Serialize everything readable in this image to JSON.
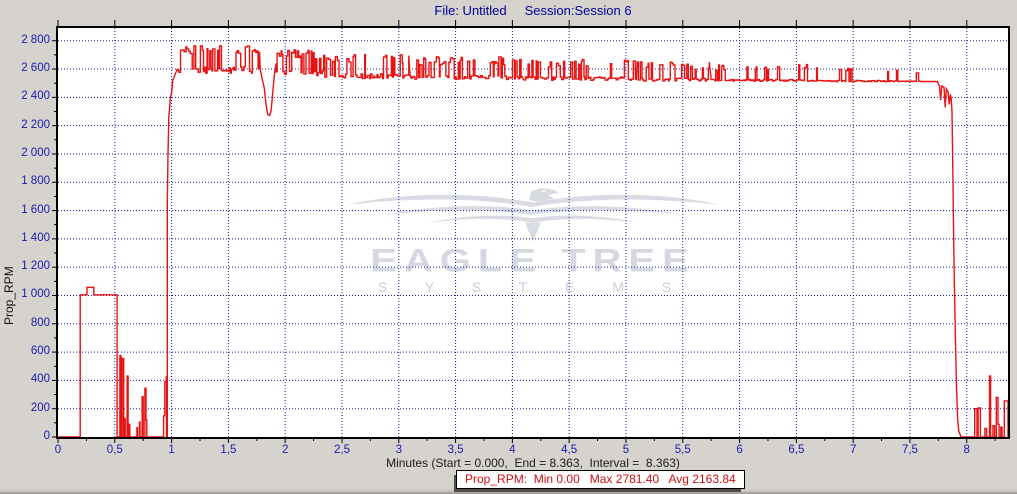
{
  "window": {
    "title_file": "File: Untitled",
    "title_session": "Session:Session 6"
  },
  "y_axis": {
    "title": "Prop_RPM"
  },
  "x_axis": {
    "title": "Minutes (Start = 0.000,  End = 8.363,  Interval =  8.363)"
  },
  "status_bar": {
    "channel": "Prop_RPM:",
    "min_label": "Min",
    "min_value": "0.00",
    "max_label": "Max",
    "max_value": "2781.40",
    "avg_label": "Avg",
    "avg_value": "2163.84"
  },
  "watermark": {
    "line1": "EAGLE TREE",
    "line2": "S Y S T E M S"
  },
  "colors": {
    "background": "#d6d3ce",
    "plot_background": "#ffffff",
    "grid": "#1c1c96",
    "axis_border": "#000000",
    "series_red": "#e81212",
    "tick_label_blue": "#1a1aae",
    "title_blue": "#00009a",
    "status_red": "#cc1111",
    "watermark_gray": "#d6d8e1"
  },
  "chart_data": {
    "type": "line",
    "title": "",
    "series_name": "Prop_RPM",
    "x_label": "Minutes",
    "y_label": "Prop_RPM",
    "x_range": [
      0,
      8.363
    ],
    "y_range": [
      0,
      2890
    ],
    "grid": true,
    "stats": {
      "min": 0.0,
      "max": 2781.4,
      "avg": 2163.84,
      "start": 0.0,
      "end": 8.363,
      "interval": 8.363
    },
    "x_ticks": {
      "values": [
        0,
        0.5,
        1,
        1.5,
        2,
        2.5,
        3,
        3.5,
        4,
        4.5,
        5,
        5.5,
        6,
        6.5,
        7,
        7.5,
        8
      ],
      "labels": [
        "0",
        "0,5",
        "1",
        "1,5",
        "2",
        "2,5",
        "3",
        "3,5",
        "4",
        "4,5",
        "5",
        "5,5",
        "6",
        "6,5",
        "7",
        "7,5",
        "8"
      ],
      "minor_step": 0.25
    },
    "y_ticks": {
      "values": [
        0,
        200,
        400,
        600,
        800,
        1000,
        1200,
        1400,
        1600,
        1800,
        2000,
        2200,
        2400,
        2600,
        2800
      ],
      "labels": [
        "0",
        "200",
        "400",
        "600",
        "800",
        "1 000",
        "1 200",
        "1 400",
        "1 600",
        "1 800",
        "2 000",
        "2 200",
        "2 400",
        "2 600",
        "2 800"
      ],
      "minor_step": 100
    },
    "segments": [
      {
        "pts": [
          [
            0,
            0
          ],
          [
            0.195,
            0
          ],
          [
            0.195,
            1005
          ],
          [
            0.255,
            1005
          ],
          [
            0.255,
            1058
          ],
          [
            0.315,
            1058
          ],
          [
            0.315,
            1005
          ],
          [
            0.52,
            1005
          ],
          [
            0.52,
            0
          ]
        ]
      },
      {
        "pts": [
          [
            0.545,
            0
          ],
          [
            0.545,
            575
          ],
          [
            0.555,
            575
          ],
          [
            0.555,
            0
          ],
          [
            0.565,
            0
          ],
          [
            0.565,
            555
          ],
          [
            0.578,
            555
          ],
          [
            0.578,
            0
          ],
          [
            0.588,
            0
          ],
          [
            0.588,
            130
          ],
          [
            0.592,
            130
          ],
          [
            0.592,
            0
          ],
          [
            0.608,
            0
          ],
          [
            0.608,
            430
          ],
          [
            0.617,
            430
          ],
          [
            0.617,
            0
          ],
          [
            0.628,
            0
          ],
          [
            0.628,
            90
          ],
          [
            0.632,
            90
          ],
          [
            0.632,
            0
          ],
          [
            0.695,
            0
          ],
          [
            0.695,
            65
          ],
          [
            0.7,
            65
          ],
          [
            0.7,
            0
          ],
          [
            0.717,
            0
          ],
          [
            0.717,
            105
          ],
          [
            0.722,
            105
          ],
          [
            0.722,
            0
          ],
          [
            0.74,
            0
          ],
          [
            0.74,
            285
          ],
          [
            0.75,
            285
          ],
          [
            0.75,
            0
          ],
          [
            0.765,
            0
          ],
          [
            0.765,
            345
          ],
          [
            0.775,
            345
          ],
          [
            0.775,
            120
          ],
          [
            0.782,
            120
          ],
          [
            0.782,
            0
          ]
        ]
      },
      {
        "pts": [
          [
            0.93,
            0
          ],
          [
            0.93,
            150
          ],
          [
            0.94,
            150
          ],
          [
            0.94,
            390
          ],
          [
            0.95,
            390
          ],
          [
            0.955,
            430
          ],
          [
            0.955,
            0
          ],
          [
            0.962,
            0
          ],
          [
            0.962,
            1650
          ],
          [
            0.968,
            2000
          ],
          [
            0.975,
            2260
          ],
          [
            0.99,
            2400
          ],
          [
            1.0,
            2430
          ],
          [
            1.01,
            2520
          ],
          [
            1.03,
            2560
          ],
          [
            1.05,
            2600
          ]
        ]
      },
      {
        "band": [
          1.05,
          1.78,
          2615,
          45,
          2768,
          0.5,
          11
        ]
      },
      {
        "pts": [
          [
            1.78,
            2600
          ],
          [
            1.8,
            2520
          ],
          [
            1.815,
            2470
          ],
          [
            1.83,
            2360
          ],
          [
            1.845,
            2280
          ],
          [
            1.862,
            2272
          ],
          [
            1.875,
            2300
          ],
          [
            1.885,
            2380
          ],
          [
            1.895,
            2480
          ],
          [
            1.905,
            2560
          ],
          [
            1.92,
            2640
          ]
        ]
      },
      {
        "band": [
          1.92,
          2.35,
          2590,
          40,
          2735,
          0.46,
          22
        ]
      },
      {
        "band": [
          2.35,
          3.1,
          2568,
          35,
          2705,
          0.4,
          33
        ]
      },
      {
        "band": [
          3.1,
          4.1,
          2555,
          30,
          2690,
          0.36,
          44
        ]
      },
      {
        "band": [
          4.1,
          5.1,
          2545,
          25,
          2668,
          0.3,
          55
        ]
      },
      {
        "band": [
          5.1,
          5.75,
          2535,
          20,
          2650,
          0.26,
          66
        ]
      },
      {
        "band": [
          5.75,
          6.6,
          2527,
          14,
          2635,
          0.2,
          77
        ]
      },
      {
        "band": [
          6.6,
          7.35,
          2520,
          10,
          2618,
          0.15,
          88
        ]
      },
      {
        "band": [
          7.35,
          7.62,
          2516,
          6,
          2595,
          0.1,
          99
        ]
      },
      {
        "pts": [
          [
            7.62,
            2512
          ],
          [
            7.74,
            2512
          ],
          [
            7.76,
            2480
          ],
          [
            7.77,
            2380
          ],
          [
            7.78,
            2480
          ],
          [
            7.8,
            2470
          ],
          [
            7.81,
            2330
          ],
          [
            7.82,
            2460
          ],
          [
            7.835,
            2440
          ],
          [
            7.845,
            2350
          ],
          [
            7.855,
            2420
          ],
          [
            7.862,
            2400
          ],
          [
            7.87,
            2300
          ],
          [
            7.877,
            1900
          ],
          [
            7.883,
            1500
          ],
          [
            7.89,
            1100
          ],
          [
            7.9,
            700
          ],
          [
            7.91,
            350
          ],
          [
            7.92,
            120
          ],
          [
            7.93,
            40
          ],
          [
            7.95,
            0
          ]
        ]
      },
      {
        "pts": [
          [
            7.95,
            0
          ],
          [
            8.07,
            0
          ],
          [
            8.07,
            200
          ],
          [
            8.09,
            200
          ],
          [
            8.09,
            0
          ],
          [
            8.1,
            0
          ],
          [
            8.1,
            205
          ],
          [
            8.12,
            205
          ],
          [
            8.12,
            0
          ],
          [
            8.16,
            0
          ],
          [
            8.16,
            60
          ],
          [
            8.175,
            60
          ],
          [
            8.175,
            0
          ],
          [
            8.2,
            0
          ],
          [
            8.2,
            430
          ],
          [
            8.21,
            430
          ],
          [
            8.21,
            0
          ],
          [
            8.23,
            0
          ],
          [
            8.23,
            80
          ],
          [
            8.245,
            80
          ],
          [
            8.245,
            0
          ],
          [
            8.26,
            0
          ],
          [
            8.26,
            280
          ],
          [
            8.275,
            280
          ],
          [
            8.275,
            90
          ],
          [
            8.285,
            90
          ],
          [
            8.285,
            0
          ],
          [
            8.3,
            0
          ],
          [
            8.3,
            70
          ],
          [
            8.31,
            70
          ],
          [
            8.31,
            0
          ],
          [
            8.33,
            0
          ],
          [
            8.33,
            255
          ],
          [
            8.363,
            255
          ],
          [
            8.363,
            0
          ]
        ]
      }
    ]
  }
}
